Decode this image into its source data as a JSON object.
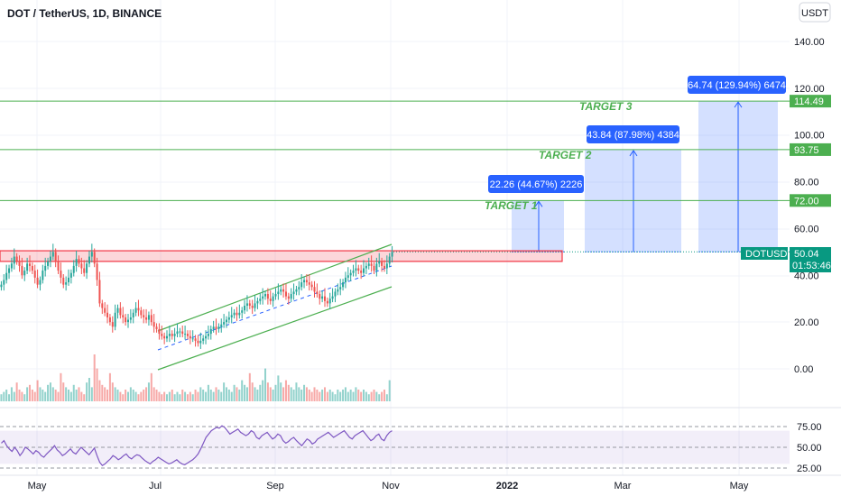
{
  "chart_data": {
    "type": "candlestick",
    "title": "DOT / TetherUS, 1D, BINANCE",
    "currency_button": "USDT",
    "ticker": "DOTUSDT",
    "last_price": "50.04",
    "countdown": "01:53:46",
    "x_ticks": [
      "May",
      "Jul",
      "Sep",
      "Nov",
      "2022",
      "Mar",
      "May"
    ],
    "y_ticks": [
      "140.00",
      "120.00",
      "100.00",
      "80.00",
      "60.00",
      "40.00",
      "20.00",
      "0.00"
    ],
    "rsi_ticks": [
      "75.00",
      "50.00",
      "25.00"
    ],
    "price_levels": [
      {
        "label": "114.49",
        "value": 114.49
      },
      {
        "label": "93.75",
        "value": 93.75
      },
      {
        "label": "72.00",
        "value": 72.0
      }
    ],
    "targets": [
      {
        "name": "TARGET 1",
        "measure": "22.26 (44.67%) 2226",
        "value": 72.0
      },
      {
        "name": "TARGET 2",
        "measure": "43.84 (87.98%) 4384",
        "value": 93.75
      },
      {
        "name": "TARGET 3",
        "measure": "64.74 (129.94%) 6474",
        "value": 114.49
      }
    ],
    "resistance_zone": [
      47.5,
      50.5
    ],
    "price_series_approx": [
      36,
      38,
      41,
      43,
      45,
      48,
      46,
      44,
      40,
      42,
      45,
      44,
      42,
      39,
      36,
      38,
      42,
      44,
      46,
      48,
      50,
      46,
      42,
      39,
      36,
      37,
      39,
      41,
      44,
      47,
      45,
      43,
      41,
      45,
      48,
      50,
      45,
      38,
      28,
      26,
      24,
      22,
      20,
      18,
      24,
      26,
      23,
      22,
      20,
      21,
      22,
      24,
      26,
      25,
      23,
      22,
      21,
      23,
      20,
      18,
      17,
      15,
      14,
      13,
      14,
      15,
      14,
      15,
      16,
      16,
      15,
      15,
      14,
      13,
      13,
      12,
      11,
      12,
      13,
      14,
      15,
      17,
      18,
      17,
      18,
      19,
      20,
      21,
      22,
      23,
      24,
      23,
      24,
      25,
      27,
      28,
      27,
      26,
      28,
      29,
      30,
      31,
      32,
      30,
      29,
      31,
      32,
      33,
      34,
      33,
      31,
      30,
      32,
      33,
      34,
      35,
      37,
      38,
      37,
      36,
      35,
      33,
      32,
      30,
      31,
      29,
      28,
      30,
      31,
      33,
      34,
      35,
      37,
      39,
      40,
      41,
      42,
      43,
      42,
      41,
      43,
      44,
      45,
      44,
      42,
      45,
      46,
      44,
      43,
      45,
      48,
      50
    ],
    "volume_series_approx": [
      3,
      4,
      5,
      3,
      6,
      4,
      8,
      5,
      4,
      3,
      6,
      7,
      5,
      4,
      9,
      6,
      5,
      4,
      7,
      8,
      6,
      5,
      4,
      12,
      8,
      6,
      5,
      4,
      7,
      5,
      6,
      4,
      3,
      8,
      10,
      6,
      20,
      14,
      9,
      7,
      6,
      5,
      12,
      8,
      6,
      5,
      4,
      3,
      5,
      4,
      6,
      5,
      4,
      3,
      4,
      5,
      6,
      8,
      12,
      6,
      5,
      4,
      3,
      4,
      3,
      4,
      5,
      3,
      4,
      3,
      5,
      4,
      3,
      4,
      3,
      5,
      4,
      6,
      5,
      4,
      7,
      5,
      4,
      6,
      5,
      4,
      8,
      6,
      5,
      4,
      7,
      6,
      5,
      9,
      7,
      6,
      12,
      8,
      6,
      5,
      7,
      9,
      14,
      8,
      6,
      5,
      7,
      11,
      8,
      6,
      9,
      7,
      6,
      5,
      8,
      6,
      5,
      7,
      6,
      5,
      4,
      6,
      5,
      4,
      5,
      6,
      4,
      5,
      4,
      3,
      5,
      4,
      5,
      6,
      4,
      5,
      4,
      6,
      5,
      4,
      5,
      4,
      3,
      4,
      5,
      4,
      3,
      4,
      5,
      3,
      9
    ],
    "rsi_series_approx": [
      55,
      58,
      52,
      48,
      45,
      50,
      46,
      40,
      44,
      50,
      48,
      45,
      42,
      46,
      44,
      40,
      38,
      42,
      45,
      48,
      52,
      47,
      44,
      40,
      42,
      45,
      48,
      44,
      42,
      46,
      50,
      47,
      44,
      41,
      45,
      49,
      40,
      32,
      28,
      30,
      33,
      36,
      40,
      38,
      35,
      37,
      40,
      42,
      38,
      36,
      39,
      41,
      40,
      37,
      34,
      32,
      30,
      33,
      35,
      38,
      36,
      34,
      32,
      30,
      31,
      33,
      35,
      32,
      30,
      29,
      31,
      33,
      35,
      38,
      42,
      48,
      55,
      62,
      66,
      70,
      72,
      74,
      73,
      76,
      74,
      70,
      66,
      68,
      70,
      72,
      68,
      66,
      64,
      66,
      70,
      68,
      62,
      60,
      64,
      66,
      68,
      64,
      60,
      62,
      66,
      64,
      58,
      55,
      57,
      60,
      62,
      58,
      55,
      52,
      56,
      60,
      58,
      54,
      56,
      60,
      62,
      64,
      66,
      68,
      65,
      62,
      64,
      66,
      68,
      70,
      66,
      62,
      60,
      64,
      66,
      68,
      70,
      66,
      62,
      58,
      60,
      64,
      66,
      60,
      58,
      64,
      68,
      70
    ]
  }
}
